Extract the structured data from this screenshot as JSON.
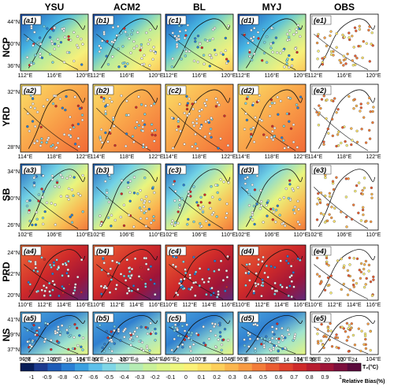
{
  "columns": [
    "YSU",
    "ACM2",
    "BL",
    "MYJ",
    "OBS"
  ],
  "rows": [
    {
      "name": "NCP",
      "panels": [
        "(a1)",
        "(b1)",
        "(c1)",
        "(d1)",
        "(e1)"
      ],
      "lat_ticks": [
        "44°N",
        "40°N",
        "36°N"
      ],
      "lon_ticks": [
        "112°E",
        "116°E",
        "120°E"
      ]
    },
    {
      "name": "YRD",
      "panels": [
        "(a2)",
        "(b2)",
        "(c2)",
        "(d2)",
        "(e2)"
      ],
      "lat_ticks": [
        "32°N",
        "28°N"
      ],
      "lon_ticks": [
        "114°E",
        "118°E",
        "122°E"
      ]
    },
    {
      "name": "SB",
      "panels": [
        "(a3)",
        "(b3)",
        "(c3)",
        "(d3)",
        "(e3)"
      ],
      "lat_ticks": [
        "34°N",
        "30°N",
        "26°N"
      ],
      "lon_ticks": [
        "102°E",
        "106°E",
        "110°E"
      ]
    },
    {
      "name": "PRD",
      "panels": [
        "(a4)",
        "(b4)",
        "(c4)",
        "(d4)",
        "(e4)"
      ],
      "lat_ticks": [
        "24°N",
        "22°N",
        "20°N"
      ],
      "lon_ticks": [
        "110°E",
        "112°E",
        "114°E",
        "116°E"
      ]
    },
    {
      "name": "NS",
      "panels": [
        "(a5)",
        "(b5)",
        "(c5)",
        "(d5)",
        "(e5)"
      ],
      "lat_ticks": [
        "41°N",
        "39°N",
        "37°N"
      ],
      "lon_ticks": [
        "96°E",
        "100°E",
        "104°E"
      ]
    }
  ],
  "colorbar": {
    "temp_ticks": [
      "-24",
      "-22",
      "-20",
      "-18",
      "-16",
      "-14",
      "-12",
      "-10",
      "-8",
      "-6",
      "-4",
      "-2",
      "0",
      "2",
      "4",
      "6",
      "8",
      "10",
      "12",
      "14",
      "16",
      "18",
      "20",
      "22",
      "24"
    ],
    "temp_label": "T₂(°C)",
    "bias_ticks": [
      "-1",
      "-0.9",
      "-0.8",
      "-0.7",
      "-0.6",
      "-0.5",
      "-0.4",
      "-0.3",
      "-0.2",
      "-0.1",
      "0",
      "0.1",
      "0.2",
      "0.3",
      "0.4",
      "0.5",
      "0.6",
      "0.7",
      "0.8",
      "0.9",
      "1"
    ],
    "bias_label": "Relative Bias(%)",
    "colors": [
      "#081d58",
      "#1c3a8f",
      "#1d5cb8",
      "#2a7fd4",
      "#3aa0e0",
      "#5ec0ea",
      "#7fd6e6",
      "#9de3d2",
      "#b6ecb4",
      "#c9f19a",
      "#dcf58a",
      "#eef77e",
      "#fbf177",
      "#fde267",
      "#fdcf5a",
      "#fbb64e",
      "#f89b43",
      "#f27c39",
      "#ea5d31",
      "#df412c",
      "#cf2a2a",
      "#b81d30",
      "#9e1438",
      "#7d0f3e",
      "#5a0a3d"
    ]
  }
}
